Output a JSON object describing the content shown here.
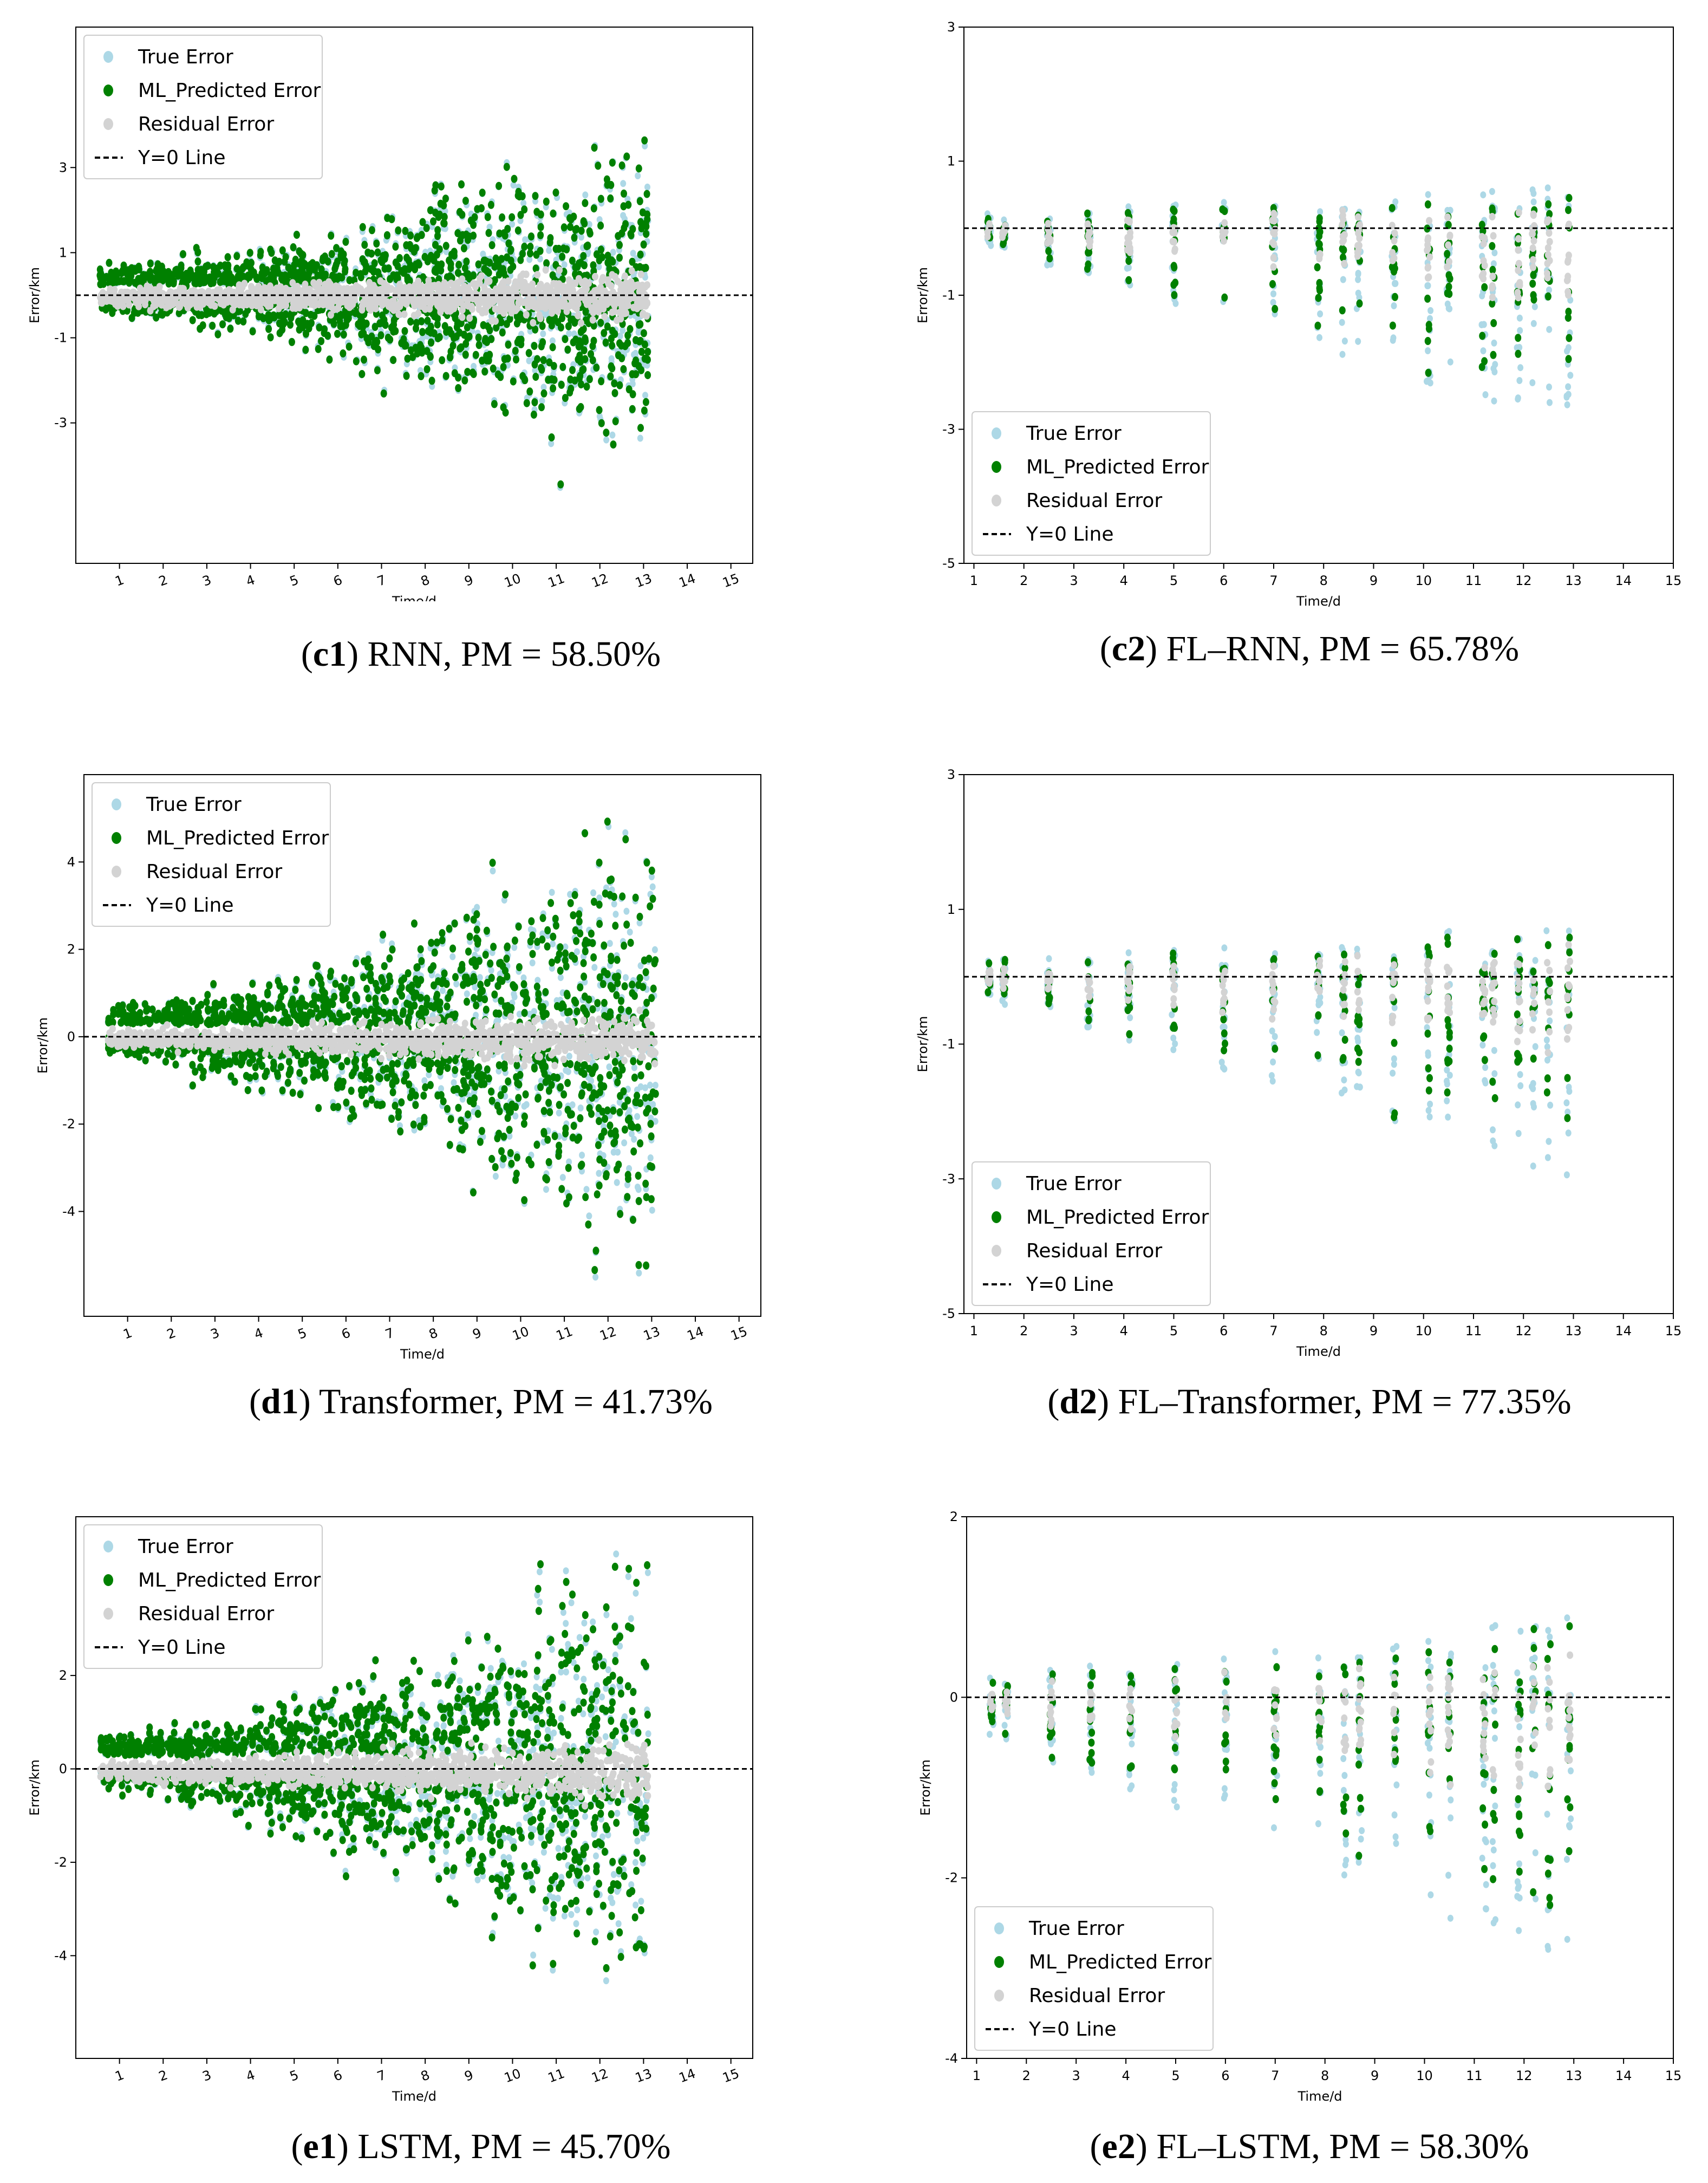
{
  "panels": [
    {
      "caption_id": "c1",
      "caption_text": "RNN, PM = 58.50%"
    },
    {
      "caption_id": "c2",
      "caption_text": "FL–RNN, PM = 65.78%"
    },
    {
      "caption_id": "d1",
      "caption_text": "Transformer, PM = 41.73%"
    },
    {
      "caption_id": "d2",
      "caption_text": "FL–Transformer, PM = 77.35%"
    },
    {
      "caption_id": "e1",
      "caption_text": "LSTM, PM = 45.70%"
    },
    {
      "caption_id": "e2",
      "caption_text": "FL–LSTM, PM = 58.30%"
    }
  ],
  "colors": {
    "true_error": "#add8e6",
    "ml_predicted": "#008000",
    "residual": "#d3d3d3",
    "zero_line": "#000000"
  },
  "chart_data": [
    {
      "id": "c1",
      "type": "scatter",
      "title": "",
      "xlabel": "Time/d",
      "ylabel": "Error/km",
      "xlim": [
        0,
        15.5
      ],
      "ylim": [
        -6.3,
        6.3
      ],
      "xticks": [
        1,
        2,
        3,
        4,
        5,
        6,
        7,
        8,
        9,
        10,
        11,
        12,
        13,
        14,
        15
      ],
      "yticks": [
        -3,
        -1,
        1,
        3
      ],
      "xtick_rotation": -20,
      "legend_pos": "top-left",
      "legend": [
        "True Error",
        "ML_Predicted Error",
        "Residual Error",
        "Y=0 Line"
      ],
      "continuous": true,
      "spread_start": 0.4,
      "spread_end": 3.4,
      "offset": 0.25,
      "max_abs": 5.6,
      "seed": 11,
      "series": [
        {
          "name": "True Error"
        },
        {
          "name": "ML_Predicted Error"
        },
        {
          "name": "Residual Error"
        },
        {
          "name": "Y=0 Line",
          "y": 0
        }
      ]
    },
    {
      "id": "c2",
      "type": "scatter",
      "title": "",
      "xlabel": "Time/d",
      "ylabel": "Error/km",
      "xlim": [
        0.8,
        15
      ],
      "ylim": [
        -5,
        3
      ],
      "xticks": [
        1,
        2,
        3,
        4,
        5,
        6,
        7,
        8,
        9,
        10,
        11,
        12,
        13,
        14,
        15
      ],
      "yticks": [
        -5,
        -3,
        -1,
        1,
        3
      ],
      "xtick_rotation": 0,
      "legend_pos": "bottom-left",
      "legend": [
        "True Error",
        "ML_Predicted Error",
        "Residual Error",
        "Y=0 Line"
      ],
      "continuous": false,
      "days": [
        1.3,
        1.6,
        2.5,
        3.3,
        4.1,
        5.0,
        6.0,
        7.0,
        7.9,
        8.4,
        8.7,
        9.4,
        10.1,
        10.5,
        11.2,
        11.4,
        11.9,
        12.2,
        12.5,
        12.9
      ],
      "bias": -0.2,
      "down_max": -3.0,
      "up_max": 0.7,
      "seed": 22,
      "series": [
        {
          "name": "True Error"
        },
        {
          "name": "ML_Predicted Error"
        },
        {
          "name": "Residual Error"
        },
        {
          "name": "Y=0 Line",
          "y": 0
        }
      ]
    },
    {
      "id": "d1",
      "type": "scatter",
      "title": "",
      "xlabel": "Time/d",
      "ylabel": "Error/km",
      "xlim": [
        0,
        15.5
      ],
      "ylim": [
        -6.4,
        6.0
      ],
      "xticks": [
        1,
        2,
        3,
        4,
        5,
        6,
        7,
        8,
        9,
        10,
        11,
        12,
        13,
        14,
        15
      ],
      "yticks": [
        -4,
        -2,
        0,
        2,
        4
      ],
      "xtick_rotation": -20,
      "legend_pos": "top-left",
      "legend": [
        "True Error",
        "ML_Predicted Error",
        "Residual Error",
        "Y=0 Line"
      ],
      "continuous": true,
      "spread_start": 0.4,
      "spread_end": 4.6,
      "offset": 0.3,
      "max_abs": 5.6,
      "seed": 33,
      "series": [
        {
          "name": "True Error"
        },
        {
          "name": "ML_Predicted Error"
        },
        {
          "name": "Residual Error"
        },
        {
          "name": "Y=0 Line",
          "y": 0
        }
      ]
    },
    {
      "id": "d2",
      "type": "scatter",
      "title": "",
      "xlabel": "Time/d",
      "ylabel": "Error/km",
      "xlim": [
        0.8,
        15
      ],
      "ylim": [
        -5,
        3
      ],
      "xticks": [
        1,
        2,
        3,
        4,
        5,
        6,
        7,
        8,
        9,
        10,
        11,
        12,
        13,
        14,
        15
      ],
      "yticks": [
        -5,
        -3,
        -1,
        1,
        3
      ],
      "xtick_rotation": 0,
      "legend_pos": "bottom-left",
      "legend": [
        "True Error",
        "ML_Predicted Error",
        "Residual Error",
        "Y=0 Line"
      ],
      "continuous": false,
      "days": [
        1.3,
        1.6,
        2.5,
        3.3,
        4.1,
        5.0,
        6.0,
        7.0,
        7.9,
        8.4,
        8.7,
        9.4,
        10.1,
        10.5,
        11.2,
        11.4,
        11.9,
        12.2,
        12.5,
        12.9
      ],
      "bias": -0.3,
      "down_max": -3.0,
      "up_max": 0.9,
      "seed": 44,
      "series": [
        {
          "name": "True Error"
        },
        {
          "name": "ML_Predicted Error"
        },
        {
          "name": "Residual Error"
        },
        {
          "name": "Y=0 Line",
          "y": 0
        }
      ]
    },
    {
      "id": "e1",
      "type": "scatter",
      "title": "",
      "xlabel": "Time/d",
      "ylabel": "Error/km",
      "xlim": [
        0,
        15.5
      ],
      "ylim": [
        -6.2,
        5.4
      ],
      "xticks": [
        1,
        2,
        3,
        4,
        5,
        6,
        7,
        8,
        9,
        10,
        11,
        12,
        13,
        14,
        15
      ],
      "yticks": [
        -4,
        -2,
        0,
        2
      ],
      "xtick_rotation": -20,
      "legend_pos": "top-left",
      "legend": [
        "True Error",
        "ML_Predicted Error",
        "Residual Error",
        "Y=0 Line"
      ],
      "continuous": true,
      "spread_start": 0.4,
      "spread_end": 4.2,
      "offset": 0.3,
      "max_abs": 5.5,
      "seed": 55,
      "series": [
        {
          "name": "True Error"
        },
        {
          "name": "ML_Predicted Error"
        },
        {
          "name": "Residual Error"
        },
        {
          "name": "Y=0 Line",
          "y": 0
        }
      ]
    },
    {
      "id": "e2",
      "type": "scatter",
      "title": "",
      "xlabel": "Time/d",
      "ylabel": "Error/km",
      "xlim": [
        0.8,
        15
      ],
      "ylim": [
        -4,
        2
      ],
      "xticks": [
        1,
        2,
        3,
        4,
        5,
        6,
        7,
        8,
        9,
        10,
        11,
        12,
        13,
        14,
        15
      ],
      "yticks": [
        -4,
        -2,
        0,
        2
      ],
      "xtick_rotation": 0,
      "legend_pos": "bottom-left",
      "legend": [
        "True Error",
        "ML_Predicted Error",
        "Residual Error",
        "Y=0 Line"
      ],
      "continuous": false,
      "days": [
        1.3,
        1.6,
        2.5,
        3.3,
        4.1,
        5.0,
        6.0,
        7.0,
        7.9,
        8.4,
        8.7,
        9.4,
        10.1,
        10.5,
        11.2,
        11.4,
        11.9,
        12.2,
        12.5,
        12.9
      ],
      "bias": -0.4,
      "down_max": -3.0,
      "up_max": 1.0,
      "seed": 66,
      "series": [
        {
          "name": "True Error"
        },
        {
          "name": "ML_Predicted Error"
        },
        {
          "name": "Residual Error"
        },
        {
          "name": "Y=0 Line",
          "y": 0
        }
      ]
    }
  ]
}
